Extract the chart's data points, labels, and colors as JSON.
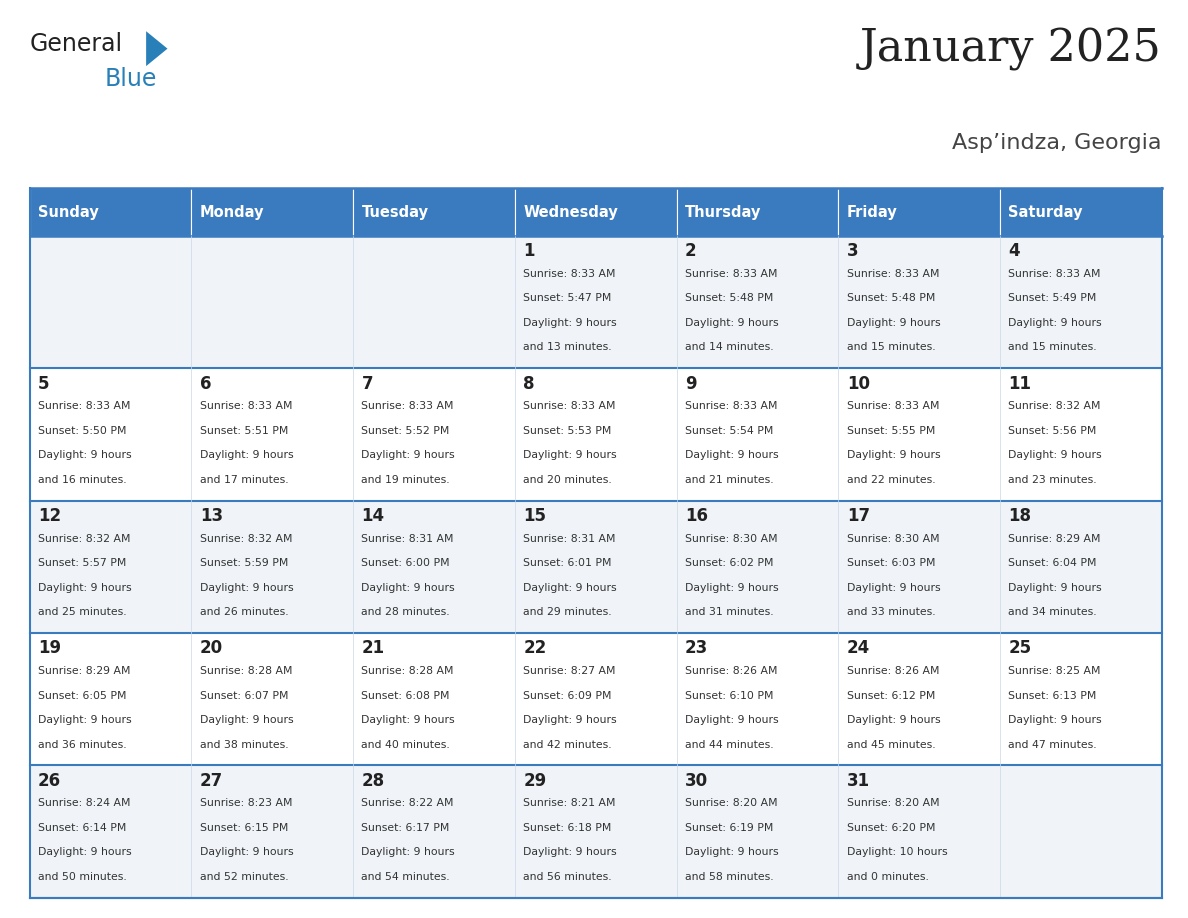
{
  "title": "January 2025",
  "subtitle": "Asp’indza, Georgia",
  "days_of_week": [
    "Sunday",
    "Monday",
    "Tuesday",
    "Wednesday",
    "Thursday",
    "Friday",
    "Saturday"
  ],
  "header_bg": "#3a7abf",
  "header_text": "#ffffff",
  "row_bg_odd": "#f0f4f8",
  "row_bg_even": "#ffffff",
  "cell_border_color": "#3a7abf",
  "cell_inner_border": "#c8d8e8",
  "day_num_color": "#222222",
  "info_color": "#333333",
  "logo_general_color": "#222222",
  "logo_blue_color": "#2980b9",
  "logo_triangle_color": "#2980b9",
  "calendar_data": [
    [
      null,
      null,
      null,
      {
        "day": 1,
        "sunrise": "8:33 AM",
        "sunset": "5:47 PM",
        "daylight": "9 hours and 13 minutes."
      },
      {
        "day": 2,
        "sunrise": "8:33 AM",
        "sunset": "5:48 PM",
        "daylight": "9 hours and 14 minutes."
      },
      {
        "day": 3,
        "sunrise": "8:33 AM",
        "sunset": "5:48 PM",
        "daylight": "9 hours and 15 minutes."
      },
      {
        "day": 4,
        "sunrise": "8:33 AM",
        "sunset": "5:49 PM",
        "daylight": "9 hours and 15 minutes."
      }
    ],
    [
      {
        "day": 5,
        "sunrise": "8:33 AM",
        "sunset": "5:50 PM",
        "daylight": "9 hours and 16 minutes."
      },
      {
        "day": 6,
        "sunrise": "8:33 AM",
        "sunset": "5:51 PM",
        "daylight": "9 hours and 17 minutes."
      },
      {
        "day": 7,
        "sunrise": "8:33 AM",
        "sunset": "5:52 PM",
        "daylight": "9 hours and 19 minutes."
      },
      {
        "day": 8,
        "sunrise": "8:33 AM",
        "sunset": "5:53 PM",
        "daylight": "9 hours and 20 minutes."
      },
      {
        "day": 9,
        "sunrise": "8:33 AM",
        "sunset": "5:54 PM",
        "daylight": "9 hours and 21 minutes."
      },
      {
        "day": 10,
        "sunrise": "8:33 AM",
        "sunset": "5:55 PM",
        "daylight": "9 hours and 22 minutes."
      },
      {
        "day": 11,
        "sunrise": "8:32 AM",
        "sunset": "5:56 PM",
        "daylight": "9 hours and 23 minutes."
      }
    ],
    [
      {
        "day": 12,
        "sunrise": "8:32 AM",
        "sunset": "5:57 PM",
        "daylight": "9 hours and 25 minutes."
      },
      {
        "day": 13,
        "sunrise": "8:32 AM",
        "sunset": "5:59 PM",
        "daylight": "9 hours and 26 minutes."
      },
      {
        "day": 14,
        "sunrise": "8:31 AM",
        "sunset": "6:00 PM",
        "daylight": "9 hours and 28 minutes."
      },
      {
        "day": 15,
        "sunrise": "8:31 AM",
        "sunset": "6:01 PM",
        "daylight": "9 hours and 29 minutes."
      },
      {
        "day": 16,
        "sunrise": "8:30 AM",
        "sunset": "6:02 PM",
        "daylight": "9 hours and 31 minutes."
      },
      {
        "day": 17,
        "sunrise": "8:30 AM",
        "sunset": "6:03 PM",
        "daylight": "9 hours and 33 minutes."
      },
      {
        "day": 18,
        "sunrise": "8:29 AM",
        "sunset": "6:04 PM",
        "daylight": "9 hours and 34 minutes."
      }
    ],
    [
      {
        "day": 19,
        "sunrise": "8:29 AM",
        "sunset": "6:05 PM",
        "daylight": "9 hours and 36 minutes."
      },
      {
        "day": 20,
        "sunrise": "8:28 AM",
        "sunset": "6:07 PM",
        "daylight": "9 hours and 38 minutes."
      },
      {
        "day": 21,
        "sunrise": "8:28 AM",
        "sunset": "6:08 PM",
        "daylight": "9 hours and 40 minutes."
      },
      {
        "day": 22,
        "sunrise": "8:27 AM",
        "sunset": "6:09 PM",
        "daylight": "9 hours and 42 minutes."
      },
      {
        "day": 23,
        "sunrise": "8:26 AM",
        "sunset": "6:10 PM",
        "daylight": "9 hours and 44 minutes."
      },
      {
        "day": 24,
        "sunrise": "8:26 AM",
        "sunset": "6:12 PM",
        "daylight": "9 hours and 45 minutes."
      },
      {
        "day": 25,
        "sunrise": "8:25 AM",
        "sunset": "6:13 PM",
        "daylight": "9 hours and 47 minutes."
      }
    ],
    [
      {
        "day": 26,
        "sunrise": "8:24 AM",
        "sunset": "6:14 PM",
        "daylight": "9 hours and 50 minutes."
      },
      {
        "day": 27,
        "sunrise": "8:23 AM",
        "sunset": "6:15 PM",
        "daylight": "9 hours and 52 minutes."
      },
      {
        "day": 28,
        "sunrise": "8:22 AM",
        "sunset": "6:17 PM",
        "daylight": "9 hours and 54 minutes."
      },
      {
        "day": 29,
        "sunrise": "8:21 AM",
        "sunset": "6:18 PM",
        "daylight": "9 hours and 56 minutes."
      },
      {
        "day": 30,
        "sunrise": "8:20 AM",
        "sunset": "6:19 PM",
        "daylight": "9 hours and 58 minutes."
      },
      {
        "day": 31,
        "sunrise": "8:20 AM",
        "sunset": "6:20 PM",
        "daylight": "10 hours and 0 minutes."
      },
      null
    ]
  ]
}
